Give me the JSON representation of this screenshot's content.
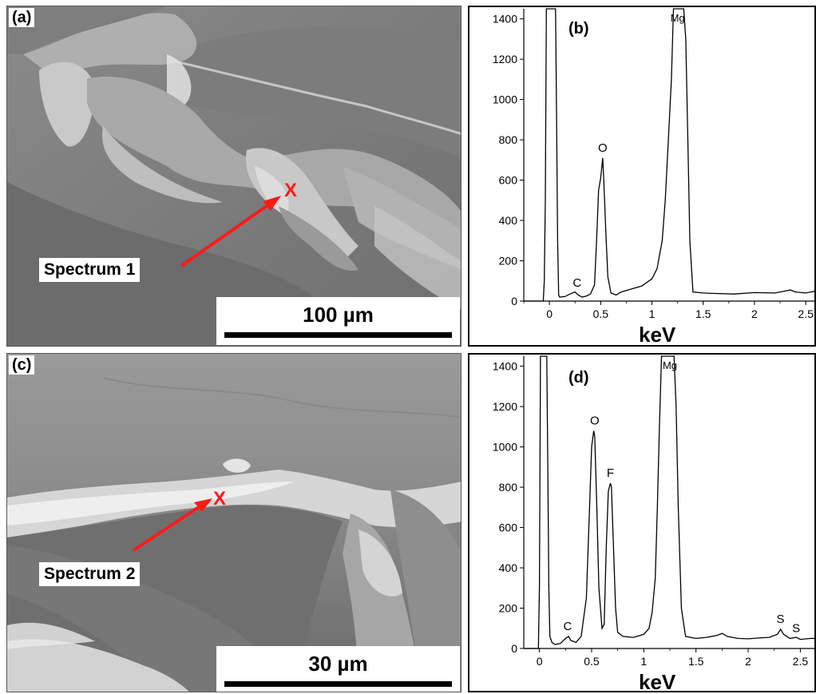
{
  "panel_a": {
    "label": "(a)",
    "spectrum_label": "Spectrum 1",
    "marker": "X",
    "scale_text": "100 µm"
  },
  "panel_c": {
    "label": "(c)",
    "spectrum_label": "Spectrum 2",
    "marker": "X",
    "scale_text": "30 µm"
  },
  "chart_data": [
    {
      "type": "line",
      "panel_label": "(b)",
      "xlabel": "keV",
      "ylabel": "",
      "xlim": [
        -0.25,
        2.6
      ],
      "ylim": [
        0,
        1450
      ],
      "x_ticks": [
        "0",
        "0.5",
        "1",
        "1.5",
        "2",
        "2.5"
      ],
      "x_tick_values": [
        0,
        0.5,
        1,
        1.5,
        2,
        2.5
      ],
      "y_ticks": [
        "0",
        "200",
        "400",
        "600",
        "800",
        "1000",
        "1200",
        "1400"
      ],
      "y_tick_values": [
        0,
        200,
        400,
        600,
        800,
        1000,
        1200,
        1400
      ],
      "annotations": [
        {
          "text": "C",
          "x": 0.27,
          "y": 40
        },
        {
          "text": "O",
          "x": 0.52,
          "y": 710
        },
        {
          "text": "Mg",
          "x": 1.25,
          "y": 1450
        }
      ],
      "series": [
        {
          "x": [
            -0.25,
            -0.06,
            -0.05,
            -0.04,
            -0.03,
            -0.02,
            -0.01,
            0,
            0.02,
            0.03,
            0.04,
            0.05,
            0.06,
            0.07,
            0.08,
            0.09,
            0.1,
            0.15,
            0.2,
            0.25,
            0.28,
            0.32,
            0.36,
            0.4,
            0.44,
            0.46,
            0.48,
            0.5,
            0.52,
            0.53,
            0.55,
            0.57,
            0.6,
            0.65,
            0.7,
            0.8,
            0.9,
            1.0,
            1.05,
            1.1,
            1.13,
            1.16,
            1.19,
            1.21,
            1.23,
            1.25,
            1.28,
            1.31,
            1.33,
            1.35,
            1.37,
            1.4,
            1.5,
            1.6,
            1.8,
            2.0,
            2.2,
            2.3,
            2.35,
            2.4,
            2.5,
            2.6
          ],
          "y": [
            0,
            0,
            100,
            500,
            1450,
            1450,
            1450,
            1450,
            1450,
            1450,
            1450,
            1450,
            1450,
            900,
            300,
            30,
            20,
            22,
            35,
            45,
            30,
            20,
            25,
            35,
            80,
            300,
            550,
            610,
            710,
            600,
            350,
            120,
            40,
            30,
            45,
            60,
            75,
            110,
            160,
            300,
            500,
            800,
            1100,
            1450,
            1450,
            1450,
            1450,
            1450,
            1300,
            800,
            300,
            45,
            40,
            38,
            35,
            42,
            40,
            50,
            55,
            45,
            40,
            50
          ]
        }
      ]
    },
    {
      "type": "line",
      "panel_label": "(d)",
      "xlabel": "keV",
      "ylabel": "",
      "xlim": [
        -0.15,
        2.65
      ],
      "ylim": [
        0,
        1450
      ],
      "x_ticks": [
        "0",
        "0.5",
        "1",
        "1.5",
        "2",
        "2.5"
      ],
      "x_tick_values": [
        0,
        0.5,
        1,
        1.5,
        2,
        2.5
      ],
      "y_ticks": [
        "0",
        "200",
        "400",
        "600",
        "800",
        "1000",
        "1200",
        "1400"
      ],
      "y_tick_values": [
        0,
        200,
        400,
        600,
        800,
        1000,
        1200,
        1400
      ],
      "annotations": [
        {
          "text": "C",
          "x": 0.27,
          "y": 60
        },
        {
          "text": "O",
          "x": 0.53,
          "y": 1080
        },
        {
          "text": "F",
          "x": 0.68,
          "y": 820
        },
        {
          "text": "Mg",
          "x": 1.25,
          "y": 1450
        },
        {
          "text": "S",
          "x": 2.31,
          "y": 95
        },
        {
          "text": "S",
          "x": 2.46,
          "y": 50
        }
      ],
      "series": [
        {
          "x": [
            -0.15,
            -0.01,
            0,
            0.01,
            0.02,
            0.03,
            0.05,
            0.07,
            0.08,
            0.09,
            0.1,
            0.12,
            0.15,
            0.2,
            0.25,
            0.28,
            0.3,
            0.35,
            0.4,
            0.45,
            0.48,
            0.5,
            0.52,
            0.53,
            0.55,
            0.57,
            0.6,
            0.62,
            0.64,
            0.66,
            0.68,
            0.69,
            0.71,
            0.73,
            0.75,
            0.8,
            0.9,
            1.0,
            1.05,
            1.08,
            1.11,
            1.13,
            1.15,
            1.17,
            1.19,
            1.23,
            1.27,
            1.29,
            1.31,
            1.33,
            1.36,
            1.4,
            1.5,
            1.6,
            1.7,
            1.75,
            1.8,
            1.9,
            2.0,
            2.1,
            2.2,
            2.28,
            2.31,
            2.34,
            2.4,
            2.46,
            2.5,
            2.6,
            2.65
          ],
          "y": [
            0,
            0,
            300,
            1450,
            1450,
            1450,
            1450,
            1450,
            900,
            300,
            60,
            30,
            20,
            25,
            50,
            60,
            40,
            30,
            60,
            250,
            700,
            1000,
            1080,
            1050,
            700,
            300,
            100,
            120,
            500,
            780,
            820,
            800,
            500,
            200,
            80,
            60,
            55,
            70,
            100,
            180,
            350,
            700,
            1100,
            1450,
            1450,
            1450,
            1450,
            1450,
            1200,
            700,
            200,
            60,
            50,
            55,
            65,
            75,
            60,
            50,
            48,
            52,
            55,
            70,
            95,
            70,
            50,
            55,
            45,
            50,
            50
          ]
        }
      ]
    }
  ]
}
